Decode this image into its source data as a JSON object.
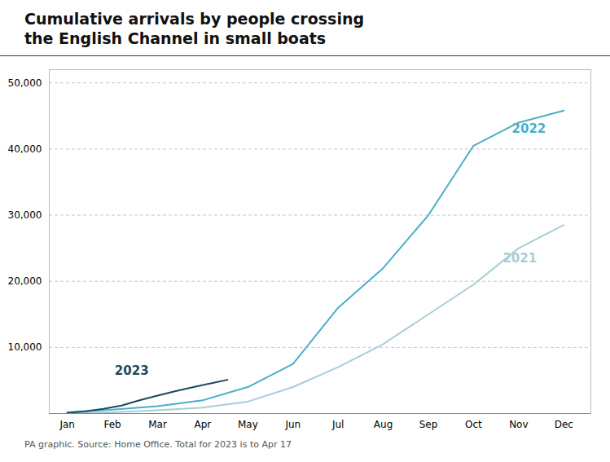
{
  "chart_data": {
    "type": "line",
    "title": "Cumulative arrivals by people crossing\nthe English Channel in small boats",
    "caption": "PA graphic. Source: Home Office. Total for 2023 is to Apr 17",
    "xlim": [
      -0.4,
      11.6
    ],
    "xticks": [
      {
        "value": 0,
        "label": "Jan"
      },
      {
        "value": 1,
        "label": "Feb"
      },
      {
        "value": 2,
        "label": "Mar"
      },
      {
        "value": 3,
        "label": "Apr"
      },
      {
        "value": 4,
        "label": "May"
      },
      {
        "value": 5,
        "label": "Jun"
      },
      {
        "value": 6,
        "label": "Jul"
      },
      {
        "value": 7,
        "label": "Aug"
      },
      {
        "value": 8,
        "label": "Sep"
      },
      {
        "value": 9,
        "label": "Oct"
      },
      {
        "value": 10,
        "label": "Nov"
      },
      {
        "value": 11,
        "label": "Dec"
      }
    ],
    "ylim": [
      0,
      52000
    ],
    "yticks": [
      {
        "value": 10000,
        "label": "10,000"
      },
      {
        "value": 20000,
        "label": "20,000"
      },
      {
        "value": 30000,
        "label": "30,000"
      },
      {
        "value": 40000,
        "label": "40,000"
      },
      {
        "value": 50000,
        "label": "50,000"
      }
    ],
    "grid": true,
    "series": [
      {
        "name": "2021",
        "color": "#a8cdd8",
        "x": [
          0,
          1,
          2,
          3,
          4,
          5,
          6,
          7,
          8,
          9,
          10,
          11
        ],
        "values": [
          50,
          200,
          500,
          900,
          1800,
          4000,
          7000,
          10500,
          15000,
          19500,
          25000,
          28500
        ]
      },
      {
        "name": "2022",
        "color": "#4baec9",
        "x": [
          0,
          1,
          2,
          3,
          4,
          5,
          6,
          7,
          8,
          9,
          10,
          11
        ],
        "values": [
          200,
          600,
          1100,
          2000,
          4000,
          7500,
          16000,
          22000,
          30000,
          40500,
          44000,
          45800
        ]
      },
      {
        "name": "2023",
        "color": "#1a4a5c",
        "x": [
          0,
          0.4,
          0.8,
          1.2,
          1.6,
          2.0,
          2.4,
          2.8,
          3.2,
          3.55
        ],
        "values": [
          100,
          350,
          700,
          1200,
          2000,
          2700,
          3400,
          4000,
          4600,
          5100
        ]
      }
    ],
    "annotations": [
      {
        "text": "2022",
        "x": 9.85,
        "y": 43000
      },
      {
        "text": "2021",
        "x": 9.65,
        "y": 23500
      },
      {
        "text": "2023",
        "x": 1.05,
        "y": 6500
      }
    ]
  }
}
